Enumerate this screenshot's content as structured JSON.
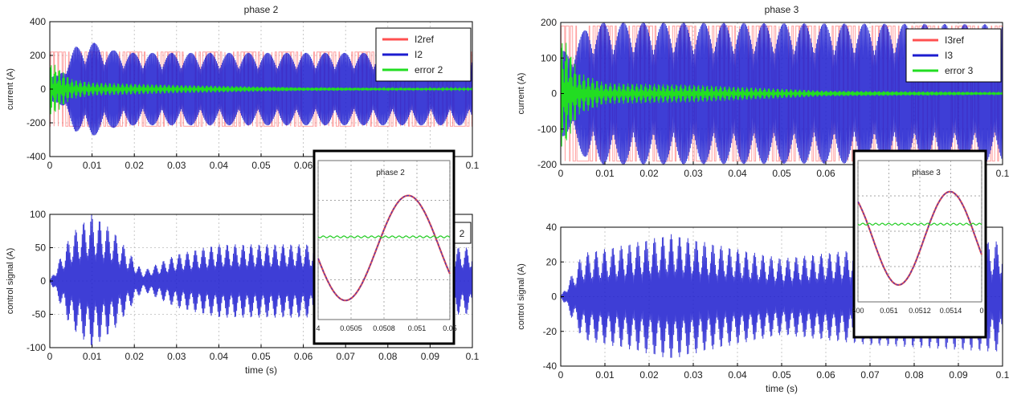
{
  "figure_panels": [
    {
      "title": "phase 2",
      "ylabel": "current (A)",
      "legend": [
        "I2ref",
        "I2",
        "error 2"
      ],
      "legend_colors": [
        "#ff5050",
        "#1c1ccf",
        "#22dd22"
      ]
    },
    {
      "ylabel": "control signal (A)",
      "xlabel": "time (s)",
      "hidden_legend_text": "2"
    },
    {
      "title": "phase 3",
      "ylabel": "current (A)",
      "legend": [
        "I3ref",
        "I3",
        "error 3"
      ],
      "legend_colors": [
        "#ff5050",
        "#1c1ccf",
        "#22dd22"
      ]
    },
    {
      "ylabel": "control signal (A)",
      "xlabel": "time (s)"
    }
  ],
  "insets": [
    {
      "title": "phase 2",
      "xticks": [
        "4",
        "0.0505",
        "0.0508",
        "0.051",
        "0.05"
      ]
    },
    {
      "title": "phase 3",
      "xticks": [
        "500",
        "0.051",
        "0.0512",
        "0.0514",
        "0"
      ]
    }
  ],
  "chart_data": [
    {
      "type": "line",
      "title": "phase 2",
      "ylabel": "current (A)",
      "xlim": [
        0,
        0.1
      ],
      "ylim": [
        -400,
        400
      ],
      "xticks": [
        0,
        0.01,
        0.02,
        0.03,
        0.04,
        0.05,
        0.06,
        0.07,
        0.08,
        0.09,
        0.1
      ],
      "yticks": [
        -400,
        -200,
        0,
        200,
        400
      ],
      "grid": true,
      "legend": "top-right",
      "series": [
        {
          "name": "I2ref",
          "color": "#ff5050",
          "description": "PWM-like square wave between about -220 and 220 A with sinusoidal envelope"
        },
        {
          "name": "I2",
          "color": "#1c1ccf",
          "peak_envelope": [
            [
              0.002,
              80
            ],
            [
              0.006,
              250
            ],
            [
              0.01,
              280
            ],
            [
              0.015,
              230
            ],
            [
              0.02,
              215
            ],
            [
              0.1,
              215
            ]
          ]
        },
        {
          "name": "error 2",
          "color": "#22dd22",
          "peak_envelope": [
            [
              0.001,
              150
            ],
            [
              0.005,
              60
            ],
            [
              0.01,
              40
            ],
            [
              0.03,
              25
            ],
            [
              0.06,
              10
            ],
            [
              0.1,
              5
            ]
          ]
        }
      ]
    },
    {
      "type": "line",
      "ylabel": "control signal (A)",
      "xlabel": "time (s)",
      "xlim": [
        0,
        0.1
      ],
      "ylim": [
        -100,
        100
      ],
      "xticks": [
        0,
        0.01,
        0.02,
        0.03,
        0.04,
        0.05,
        0.06,
        0.07,
        0.08,
        0.09,
        0.1
      ],
      "yticks": [
        -100,
        -50,
        0,
        50,
        100
      ],
      "grid": true,
      "series": [
        {
          "color": "#1c1ccf",
          "peak_envelope": [
            [
              0,
              0
            ],
            [
              0.005,
              70
            ],
            [
              0.01,
              100
            ],
            [
              0.015,
              75
            ],
            [
              0.022,
              15
            ],
            [
              0.03,
              40
            ],
            [
              0.04,
              55
            ],
            [
              0.06,
              55
            ],
            [
              0.1,
              50
            ]
          ]
        }
      ]
    },
    {
      "type": "line",
      "title": "phase 3",
      "ylabel": "current (A)",
      "xlim": [
        0,
        0.1
      ],
      "ylim": [
        -200,
        200
      ],
      "xticks": [
        0,
        0.01,
        0.02,
        0.03,
        0.04,
        0.05,
        0.06,
        0.07,
        0.08,
        0.09,
        0.1
      ],
      "yticks": [
        -200,
        -100,
        0,
        100,
        200
      ],
      "grid": true,
      "legend": "top-right",
      "series": [
        {
          "name": "I3ref",
          "color": "#ff5050",
          "description": "PWM-like square wave between about -190 and 190 A with sinusoidal envelope"
        },
        {
          "name": "I3",
          "color": "#1c1ccf",
          "peak_envelope": [
            [
              0.002,
              120
            ],
            [
              0.006,
              190
            ],
            [
              0.01,
              200
            ],
            [
              0.1,
              195
            ]
          ]
        },
        {
          "name": "error 3",
          "color": "#22dd22",
          "peak_envelope": [
            [
              0.001,
              150
            ],
            [
              0.004,
              60
            ],
            [
              0.01,
              30
            ],
            [
              0.03,
              25
            ],
            [
              0.06,
              8
            ],
            [
              0.1,
              4
            ]
          ]
        }
      ]
    },
    {
      "type": "line",
      "ylabel": "control signal (A)",
      "xlabel": "time (s)",
      "xlim": [
        0,
        0.1
      ],
      "ylim": [
        -40,
        40
      ],
      "xticks": [
        0,
        0.01,
        0.02,
        0.03,
        0.04,
        0.05,
        0.06,
        0.07,
        0.08,
        0.09,
        0.1
      ],
      "yticks": [
        -40,
        -20,
        0,
        20,
        40
      ],
      "grid": true,
      "series": [
        {
          "color": "#1c1ccf",
          "peak_envelope": [
            [
              0,
              0
            ],
            [
              0.005,
              25
            ],
            [
              0.015,
              30
            ],
            [
              0.025,
              36
            ],
            [
              0.035,
              30
            ],
            [
              0.05,
              22
            ],
            [
              0.07,
              28
            ],
            [
              0.1,
              32
            ]
          ]
        }
      ]
    }
  ]
}
